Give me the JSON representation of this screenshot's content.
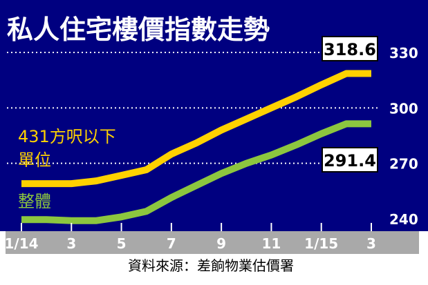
{
  "chart_data": {
    "type": "line",
    "title": "私人住宅樓價指數走勢",
    "x_tick_labels": [
      "1/14",
      "3",
      "5",
      "7",
      "9",
      "11",
      "1/15",
      "3"
    ],
    "x": [
      "2014-01",
      "2014-02",
      "2014-03",
      "2014-04",
      "2014-05",
      "2014-06",
      "2014-07",
      "2014-08",
      "2014-09",
      "2014-10",
      "2014-11",
      "2014-12",
      "2015-01",
      "2015-02",
      "2015-03"
    ],
    "y_ticks": [
      240,
      270,
      300,
      330
    ],
    "ylim": [
      240,
      330
    ],
    "grid": "dotted",
    "series": [
      {
        "name": "431方呎以下 單位",
        "label_lines": [
          "431方呎以下",
          "單位"
        ],
        "color": "#ffd200",
        "values": [
          259.0,
          259.0,
          259.0,
          260.5,
          263.5,
          266.5,
          275.0,
          281.0,
          288.0,
          294.0,
          300.0,
          306.0,
          312.5,
          318.6,
          318.6
        ],
        "end_label": "318.6"
      },
      {
        "name": "整體",
        "label_lines": [
          "整體"
        ],
        "color": "#8cc63f",
        "values": [
          239.5,
          239.5,
          239.0,
          239.0,
          241.0,
          244.0,
          251.5,
          258.0,
          264.5,
          270.0,
          274.5,
          280.0,
          286.0,
          291.4,
          291.4
        ],
        "end_label": "291.4"
      }
    ],
    "source": "資料來源：差餉物業估價署",
    "colors": {
      "background": "#000080",
      "axis_band": "#a9a9a9",
      "grid": "#ffffff",
      "text": "#ffffff"
    }
  }
}
